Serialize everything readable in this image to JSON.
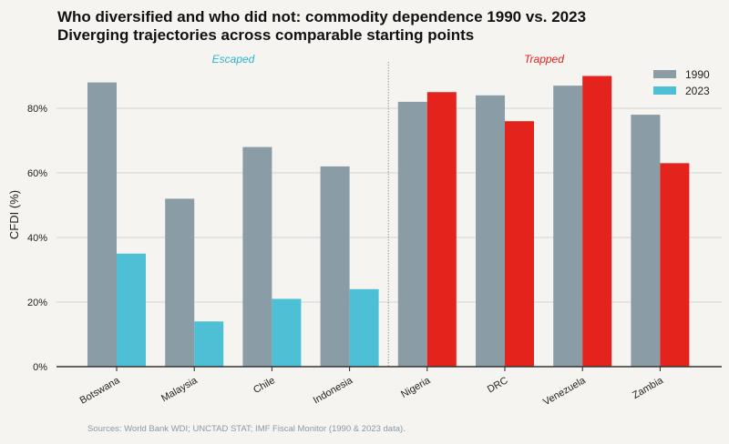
{
  "chart_data": {
    "type": "bar",
    "title": "Who diversified and who did not: commodity dependence 1990 vs. 2023",
    "subtitle": "Diverging trajectories across comparable starting points",
    "ylabel": "CFDI (%)",
    "xlabel": "",
    "ylim": [
      0,
      94
    ],
    "yticks": [
      0,
      20,
      40,
      60,
      80
    ],
    "ytick_labels": [
      "0%",
      "20%",
      "40%",
      "60%",
      "80%"
    ],
    "grid": "horizontal",
    "legend": "top-right",
    "categories": [
      "Botswana",
      "Malaysia",
      "Chile",
      "Indonesia",
      "Nigeria",
      "DRC",
      "Venezuela",
      "Zambia"
    ],
    "series": [
      {
        "name": "1990",
        "values": [
          88,
          52,
          68,
          62,
          82,
          84,
          87,
          78
        ],
        "color": "#8a9ca5"
      },
      {
        "name": "2023",
        "values": [
          35,
          14,
          21,
          24,
          85,
          76,
          90,
          63
        ],
        "color": "#4dc0d6",
        "trapped_color": "#e5231d"
      }
    ],
    "groups": [
      {
        "label": "Escaped",
        "color": "#2bb5cc"
      },
      {
        "label": "Trapped",
        "color": "#e5231d"
      }
    ],
    "source": "Sources: World Bank WDI; UNCTAD STAT; IMF Fiscal Monitor (1990 & 2023 data)."
  }
}
